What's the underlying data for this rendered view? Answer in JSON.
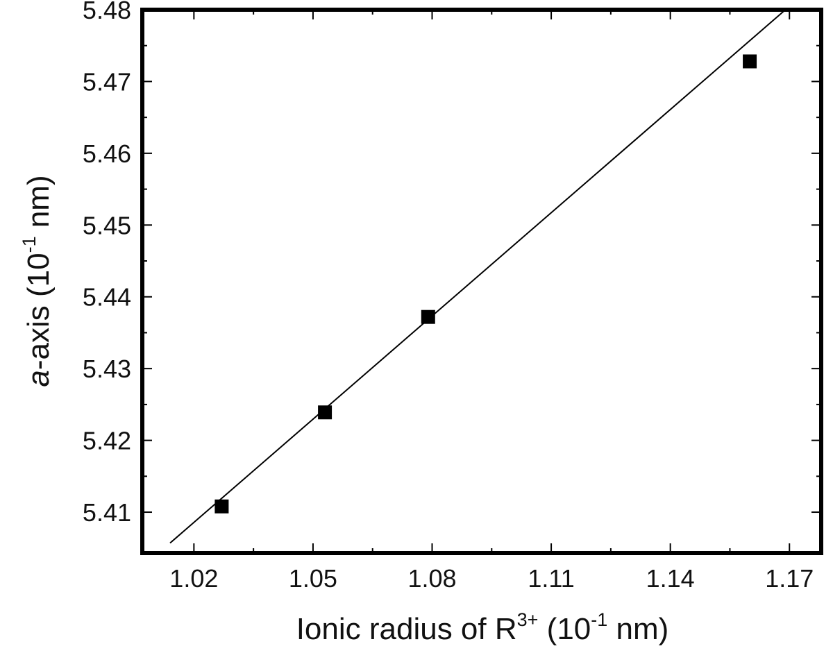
{
  "chart_data": {
    "type": "scatter",
    "title": "",
    "xlabel_main": "Ionic radius of R",
    "xlabel_sup": "3+",
    "xlabel_units_open": " (10",
    "xlabel_units_sup": "-1",
    "xlabel_units_close": " nm)",
    "ylabel_italic": "a",
    "ylabel_main": "-axis (10",
    "ylabel_sup": "-1",
    "ylabel_close": " nm)",
    "xlim": [
      1.007,
      1.178
    ],
    "ylim": [
      5.4043,
      5.48
    ],
    "x_ticks": [
      1.02,
      1.05,
      1.08,
      1.11,
      1.14,
      1.17
    ],
    "x_tick_labels": [
      "1.02",
      "1.05",
      "1.08",
      "1.11",
      "1.14",
      "1.17"
    ],
    "y_ticks": [
      5.41,
      5.42,
      5.43,
      5.44,
      5.45,
      5.46,
      5.47,
      5.48
    ],
    "y_tick_labels": [
      "5.41",
      "5.42",
      "5.43",
      "5.44",
      "5.45",
      "5.46",
      "5.47",
      "5.48"
    ],
    "grid": false,
    "legend": "none",
    "series": [
      {
        "marker": "filled-square",
        "color": "#000000",
        "x": [
          1.027,
          1.053,
          1.079,
          1.16
        ],
        "y": [
          5.4108,
          5.4239,
          5.4372,
          5.4728
        ]
      }
    ],
    "fit_line": {
      "color": "#000000",
      "x": [
        1.014,
        1.169
      ],
      "y": [
        5.4057,
        5.48
      ]
    }
  }
}
